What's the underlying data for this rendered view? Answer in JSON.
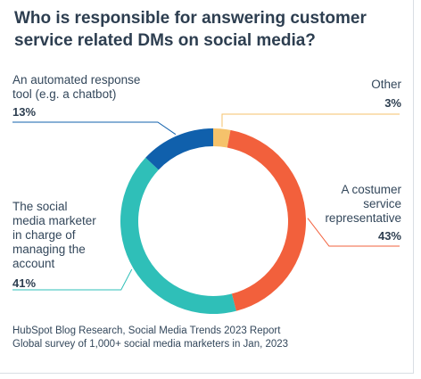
{
  "chart_data": {
    "type": "pie",
    "variant": "donut",
    "title": "Who is responsible for answering customer service related DMs on social media?",
    "slices": [
      {
        "label": "Other",
        "value": 3,
        "value_label": "3%",
        "color": "#f5c26b"
      },
      {
        "label": "A costumer service representative",
        "value": 43,
        "value_label": "43%",
        "color": "#f2603c"
      },
      {
        "label": "The social media marketer in charge of managing the account",
        "value": 41,
        "value_label": "41%",
        "color": "#2fbfb8"
      },
      {
        "label": "An automated response tool (e.g. a chatbot)",
        "value": 13,
        "value_label": "13%",
        "color": "#1060ac"
      }
    ]
  },
  "labels": {
    "chatbot_line1": "An automated response",
    "chatbot_line2": "tool (e.g. a chatbot)",
    "other_line1": "Other",
    "rep_line1": "A costumer",
    "rep_line2": "service",
    "rep_line3": "representative",
    "marketer_line1": "The social",
    "marketer_line2": "media marketer",
    "marketer_line3": "in charge of",
    "marketer_line4": "managing the",
    "marketer_line5": "account"
  },
  "source": {
    "line1": "HubSpot Blog Research, Social Media Trends 2023 Report",
    "line2": "Global survey of 1,000+ social media marketers in Jan, 2023"
  }
}
